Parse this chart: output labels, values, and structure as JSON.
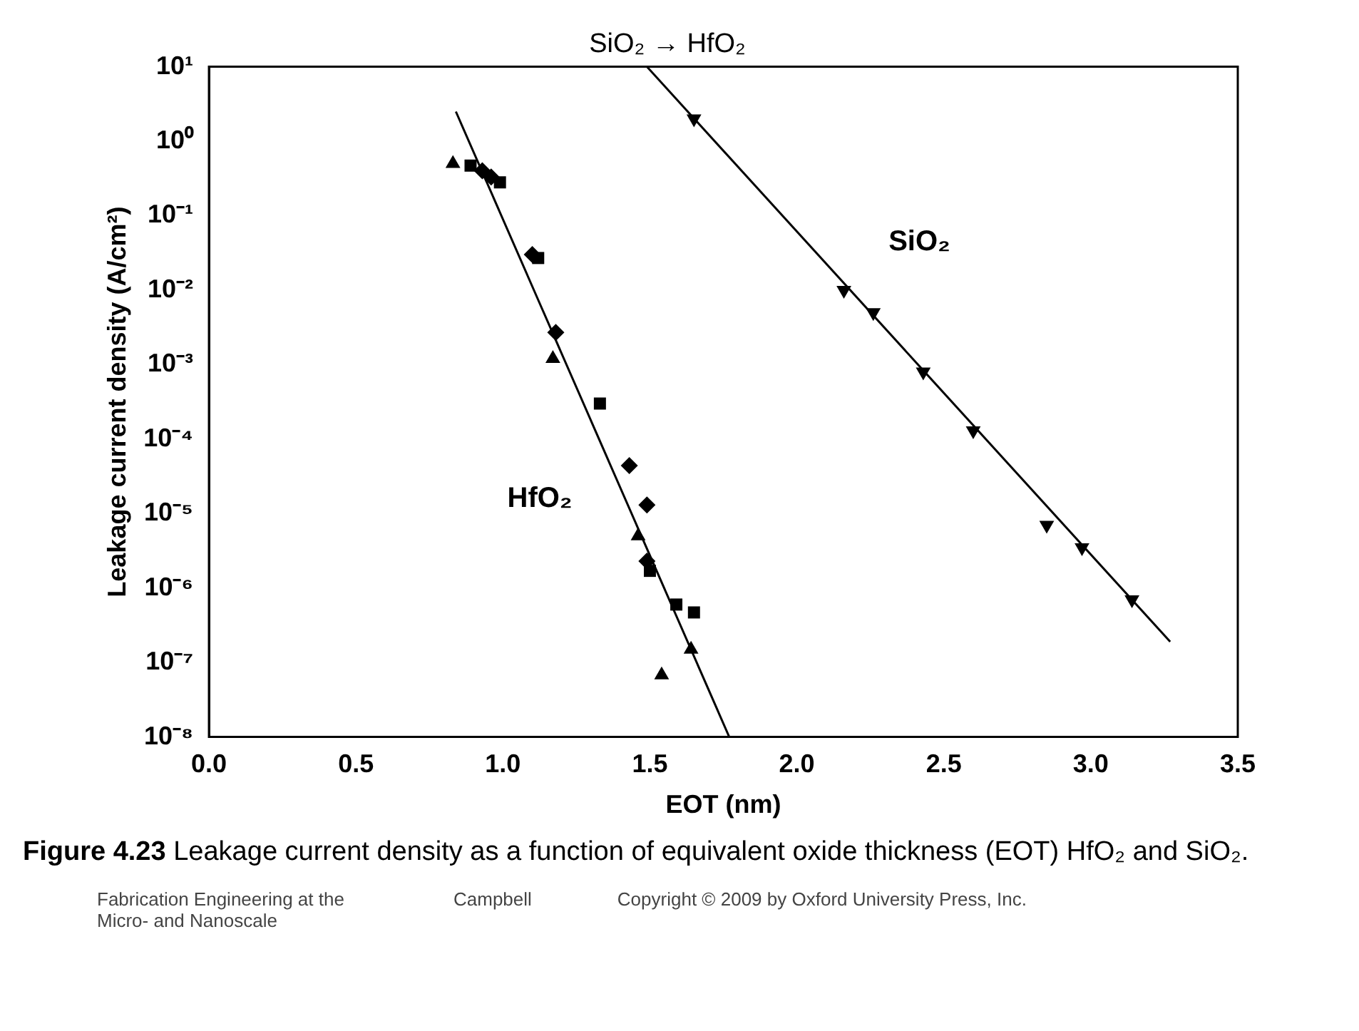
{
  "chart_data": {
    "type": "scatter",
    "title": "SiO₂ → HfO₂",
    "xlabel": "EOT (nm)",
    "ylabel": "Leakage current density (A/cm²)",
    "log": "y",
    "grid": false,
    "legend": false,
    "xlim": [
      0,
      3.5
    ],
    "xticks": [
      {
        "value": 0,
        "label": "0.0"
      },
      {
        "value": 0.5,
        "label": "0.5"
      },
      {
        "value": 1,
        "label": "1.0"
      },
      {
        "value": 1.5,
        "label": "1.5"
      },
      {
        "value": 2,
        "label": "2.0"
      },
      {
        "value": 2.5,
        "label": "2.5"
      },
      {
        "value": 3,
        "label": "3.0"
      },
      {
        "value": 3.5,
        "label": "3.5"
      }
    ],
    "ylim": [
      1e-08,
      10
    ],
    "yticks": [
      {
        "value": 10,
        "label": "10¹"
      },
      {
        "value": 1,
        "label": "10⁰"
      },
      {
        "value": 0.1,
        "label": "10⁻¹"
      },
      {
        "value": 0.01,
        "label": "10⁻²"
      },
      {
        "value": 0.001,
        "label": "10⁻³"
      },
      {
        "value": 0.0001,
        "label": "10⁻⁴"
      },
      {
        "value": 1e-05,
        "label": "10⁻⁵"
      },
      {
        "value": 1e-06,
        "label": "10⁻⁶"
      },
      {
        "value": 1e-07,
        "label": "10⁻⁷"
      },
      {
        "value": 1e-08,
        "label": "10⁻⁸"
      }
    ],
    "series": [
      {
        "marker": "triangle",
        "color": "#000000",
        "x": [
          0.83,
          1.17,
          1.46,
          1.54,
          1.64
        ],
        "values": [
          0.5,
          0.0012,
          5e-06,
          6.8e-08,
          1.5e-07
        ]
      },
      {
        "marker": "square",
        "color": "#000000",
        "x": [
          0.89,
          0.99,
          1.12,
          1.33,
          1.5,
          1.59,
          1.65
        ],
        "values": [
          0.47,
          0.28,
          0.027,
          0.0003,
          1.7e-06,
          6e-07,
          4.7e-07
        ]
      },
      {
        "marker": "diamond",
        "color": "#000000",
        "x": [
          0.93,
          0.96,
          1.1,
          1.18,
          1.43,
          1.49,
          1.49
        ],
        "values": [
          0.4,
          0.33,
          0.03,
          0.0027,
          4.4e-05,
          1.3e-05,
          2.3e-06
        ]
      },
      {
        "marker": "triangle-down",
        "color": "#000000",
        "x": [
          1.65,
          2.16,
          2.26,
          2.43,
          2.6,
          2.85,
          2.97,
          3.14
        ],
        "values": [
          2,
          0.01,
          0.005,
          0.0008,
          0.00013,
          7e-06,
          3.5e-06,
          7e-07
        ]
      },
      {
        "type": "line",
        "name": "HfO₂",
        "marker": "none",
        "color": "#000000",
        "x": [
          0.84,
          1.77
        ],
        "values": [
          2.5,
          1e-08
        ]
      },
      {
        "type": "line",
        "name": "SiO₂",
        "marker": "none",
        "color": "#000000",
        "x": [
          1.49,
          3.27
        ],
        "values": [
          10,
          1.9e-07
        ]
      }
    ],
    "annotations": [
      "Figure 4.23",
      "Leakage current density as a function of equivalent oxide thickness (EOT) HfO₂ and SiO₂.",
      "Fabrication Engineering at the Micro- and Nanoscale",
      "Campbell",
      "Copyright © 2009 by Oxford University Press, Inc."
    ]
  }
}
